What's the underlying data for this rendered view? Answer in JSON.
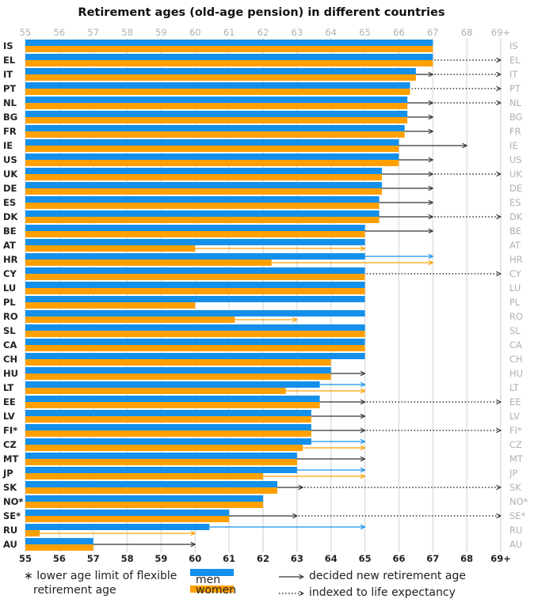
{
  "chart_data": {
    "type": "bar",
    "orientation": "horizontal",
    "title": "Retirement ages (old-age pension) in different countries",
    "xlim": [
      55,
      69
    ],
    "xticks": [
      "55",
      "56",
      "57",
      "58",
      "59",
      "60",
      "61",
      "62",
      "63",
      "64",
      "65",
      "66",
      "67",
      "68",
      "69+"
    ],
    "grid": true,
    "legend_placement": "bottom",
    "colors": {
      "men": "#1490ea",
      "women": "#ffa000",
      "arrow": "#333333",
      "grid": "#e6e6e6",
      "right_labels": "#b0b0b0"
    },
    "series": [
      {
        "name": "men"
      },
      {
        "name": "women"
      }
    ],
    "rows": [
      {
        "c": "IS",
        "men": 67,
        "women": 67
      },
      {
        "c": "EL",
        "men": 67,
        "women": 67,
        "indexed": true
      },
      {
        "c": "IT",
        "men": 66.5,
        "women": 66.5,
        "decided": [
          {
            "who": "both",
            "to": 67
          }
        ],
        "indexed": true
      },
      {
        "c": "PT",
        "men": 66.33,
        "women": 66.33,
        "indexed": true
      },
      {
        "c": "NL",
        "men": 66.25,
        "women": 66.25,
        "decided": [
          {
            "who": "both",
            "to": 67
          }
        ],
        "indexed": true
      },
      {
        "c": "BG",
        "men": 66.25,
        "women": 66.25,
        "decided": [
          {
            "who": "both",
            "to": 67
          }
        ]
      },
      {
        "c": "FR",
        "men": 66.17,
        "women": 66.17,
        "decided": [
          {
            "who": "both",
            "to": 67
          }
        ]
      },
      {
        "c": "IE",
        "men": 66,
        "women": 66,
        "decided": [
          {
            "who": "both",
            "to": 68
          }
        ]
      },
      {
        "c": "US",
        "men": 66,
        "women": 66,
        "decided": [
          {
            "who": "both",
            "to": 67
          }
        ]
      },
      {
        "c": "UK",
        "men": 65.5,
        "women": 65.5,
        "decided": [
          {
            "who": "both",
            "to": 67
          }
        ],
        "indexed": true
      },
      {
        "c": "DE",
        "men": 65.5,
        "women": 65.5,
        "decided": [
          {
            "who": "both",
            "to": 67
          }
        ]
      },
      {
        "c": "ES",
        "men": 65.42,
        "women": 65.42,
        "decided": [
          {
            "who": "both",
            "to": 67
          }
        ]
      },
      {
        "c": "DK",
        "men": 65.42,
        "women": 65.42,
        "decided": [
          {
            "who": "both",
            "to": 67
          }
        ],
        "indexed": true
      },
      {
        "c": "BE",
        "men": 65,
        "women": 65,
        "decided": [
          {
            "who": "both",
            "to": 67
          }
        ]
      },
      {
        "c": "AT",
        "men": 65,
        "women": 60,
        "decided": [
          {
            "who": "women",
            "to": 65
          }
        ]
      },
      {
        "c": "HR",
        "men": 65,
        "women": 62.25,
        "decided": [
          {
            "who": "men",
            "to": 67
          },
          {
            "who": "women",
            "to": 67
          }
        ]
      },
      {
        "c": "CY",
        "men": 65,
        "women": 65,
        "indexed": true
      },
      {
        "c": "LU",
        "men": 65,
        "women": 65
      },
      {
        "c": "PL",
        "men": 65,
        "women": 60
      },
      {
        "c": "RO",
        "men": 65,
        "women": 61.17,
        "decided": [
          {
            "who": "women",
            "to": 63
          }
        ]
      },
      {
        "c": "SL",
        "men": 65,
        "women": 65
      },
      {
        "c": "CA",
        "men": 65,
        "women": 65
      },
      {
        "c": "CH",
        "men": 65,
        "women": 64
      },
      {
        "c": "HU",
        "men": 64,
        "women": 64,
        "decided": [
          {
            "who": "both",
            "to": 65
          }
        ]
      },
      {
        "c": "LT",
        "men": 63.67,
        "women": 62.67,
        "decided": [
          {
            "who": "men",
            "to": 65
          },
          {
            "who": "women",
            "to": 65
          }
        ]
      },
      {
        "c": "EE",
        "men": 63.67,
        "women": 63.67,
        "decided": [
          {
            "who": "both",
            "to": 65
          }
        ],
        "indexed": true
      },
      {
        "c": "LV",
        "men": 63.42,
        "women": 63.42,
        "decided": [
          {
            "who": "both",
            "to": 65
          }
        ]
      },
      {
        "c": "FI*",
        "men": 63.42,
        "women": 63.42,
        "decided": [
          {
            "who": "both",
            "to": 65
          }
        ],
        "indexed": true
      },
      {
        "c": "CZ",
        "men": 63.42,
        "women": 63.17,
        "decided": [
          {
            "who": "men",
            "to": 65
          },
          {
            "who": "women",
            "to": 65
          }
        ]
      },
      {
        "c": "MT",
        "men": 63,
        "women": 63,
        "decided": [
          {
            "who": "both",
            "to": 65
          }
        ]
      },
      {
        "c": "JP",
        "men": 63,
        "women": 62,
        "decided": [
          {
            "who": "men",
            "to": 65
          },
          {
            "who": "women",
            "to": 65
          }
        ]
      },
      {
        "c": "SK",
        "men": 62.42,
        "women": 62.42,
        "decided": [
          {
            "who": "both",
            "to": 63.17
          }
        ],
        "indexed": true
      },
      {
        "c": "NO*",
        "men": 62,
        "women": 62
      },
      {
        "c": "SE*",
        "men": 61,
        "women": 61,
        "decided": [
          {
            "who": "both",
            "to": 63
          }
        ],
        "indexed": true
      },
      {
        "c": "RU",
        "men": 60.42,
        "women": 55.42,
        "decided": [
          {
            "who": "men",
            "to": 65
          },
          {
            "who": "women",
            "to": 60
          }
        ]
      },
      {
        "c": "AU",
        "men": 57,
        "women": 57,
        "decided": [
          {
            "who": "both",
            "to": 60
          }
        ]
      }
    ]
  },
  "legend": {
    "note_star": "∗",
    "note_line1": "lower age limit of flexible",
    "note_line2": "retirement age",
    "men": "men",
    "women": "women",
    "decided": "decided new retirement age",
    "indexed": "indexed to life expectancy"
  }
}
